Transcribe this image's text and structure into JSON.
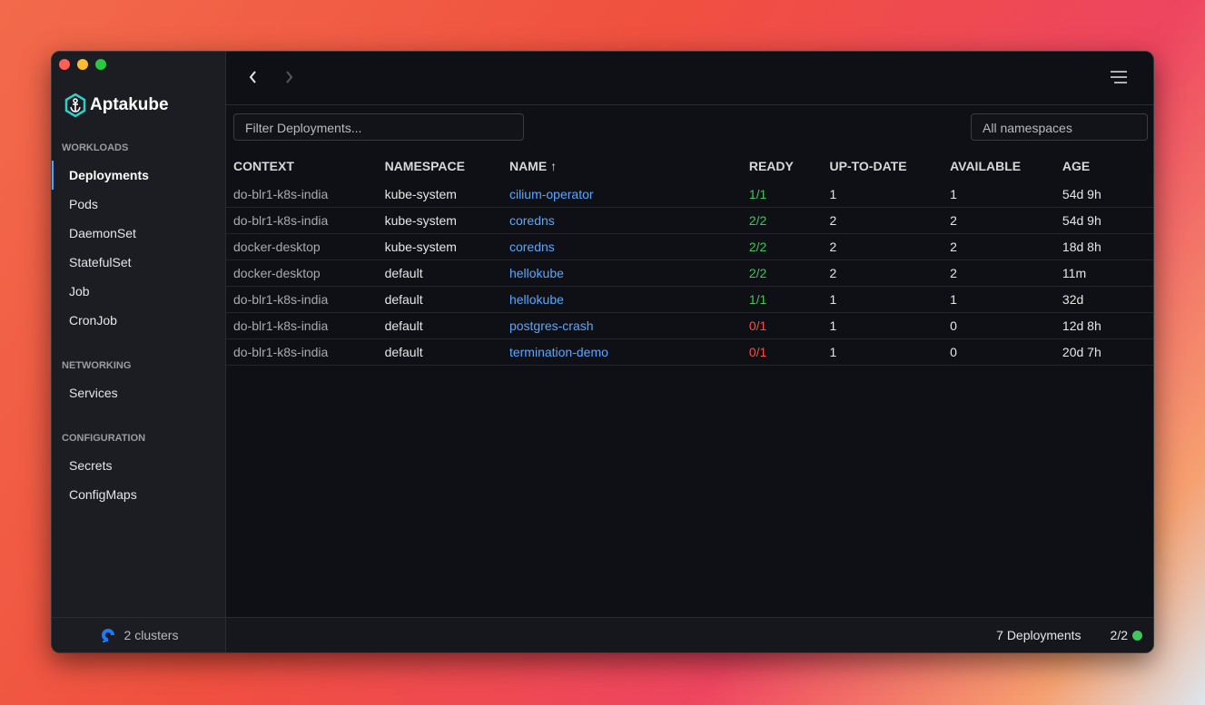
{
  "app": {
    "name": "Aptakube"
  },
  "sidebar": {
    "sections": [
      {
        "title": "WORKLOADS",
        "items": [
          "Deployments",
          "Pods",
          "DaemonSet",
          "StatefulSet",
          "Job",
          "CronJob"
        ]
      },
      {
        "title": "NETWORKING",
        "items": [
          "Services"
        ]
      },
      {
        "title": "CONFIGURATION",
        "items": [
          "Secrets",
          "ConfigMaps"
        ]
      }
    ]
  },
  "toolbar": {
    "filter_placeholder": "Filter Deployments...",
    "namespace_select": "All namespaces"
  },
  "table": {
    "columns": [
      "CONTEXT",
      "NAMESPACE",
      "NAME ↑",
      "READY",
      "UP-TO-DATE",
      "AVAILABLE",
      "AGE"
    ],
    "rows": [
      [
        "do-blr1-k8s-india",
        "kube-system",
        "cilium-operator",
        "1/1",
        "1",
        "1",
        "54d 9h"
      ],
      [
        "do-blr1-k8s-india",
        "kube-system",
        "coredns",
        "2/2",
        "2",
        "2",
        "54d 9h"
      ],
      [
        "docker-desktop",
        "kube-system",
        "coredns",
        "2/2",
        "2",
        "2",
        "18d 8h"
      ],
      [
        "docker-desktop",
        "default",
        "hellokube",
        "2/2",
        "2",
        "2",
        "11m"
      ],
      [
        "do-blr1-k8s-india",
        "default",
        "hellokube",
        "1/1",
        "1",
        "1",
        "32d"
      ],
      [
        "do-blr1-k8s-india",
        "default",
        "postgres-crash",
        "0/1",
        "1",
        "0",
        "12d 8h"
      ],
      [
        "do-blr1-k8s-india",
        "default",
        "termination-demo",
        "0/1",
        "1",
        "0",
        "20d 7h"
      ]
    ]
  },
  "footer": {
    "clusters": "2 clusters",
    "count": "7 Deployments",
    "status": "2/2"
  }
}
